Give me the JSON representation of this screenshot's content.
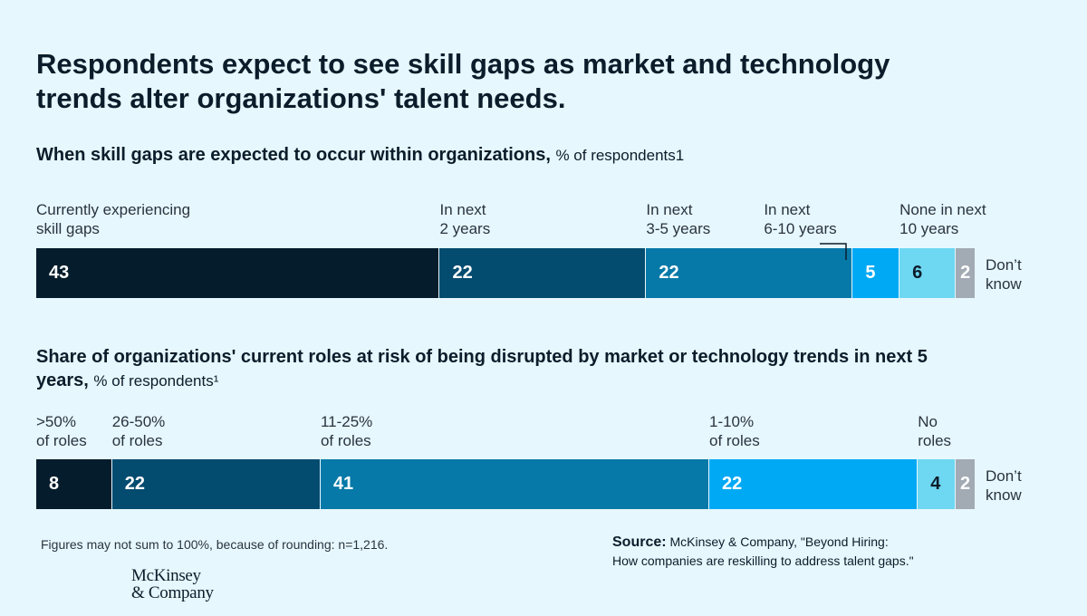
{
  "title": "Respondents expect to see skill gaps as market and technology trends alter organizations' talent needs.",
  "chart_data": [
    {
      "type": "bar",
      "orientation": "horizontal-stacked",
      "title": "When skill gaps are expected to occur within organizations,",
      "unit": "% of respondents1",
      "categories": [
        "Currently experiencing\nskill gaps",
        "In next\n2 years",
        "In next\n3-5 years",
        "In next\n6-10 years",
        "None in next\n10 years",
        "Don’t\nknow"
      ],
      "values": [
        43,
        22,
        22,
        5,
        6,
        2
      ],
      "colors": [
        "#051c2c",
        "#034b6f",
        "#0679a8",
        "#00a9f4",
        "#6ed7f2",
        "#a2aab3"
      ],
      "value_text_colors": [
        "#ffffff",
        "#ffffff",
        "#ffffff",
        "#ffffff",
        "#0b1d2a",
        "#ffffff"
      ],
      "widths_scale_sum": 100
    },
    {
      "type": "bar",
      "orientation": "horizontal-stacked",
      "title": "Share of organizations' current roles at risk of being disrupted by market or technology trends in next 5 years,",
      "unit": "% of respondents¹",
      "categories": [
        ">50%\nof roles",
        "26-50%\nof roles",
        "11-25%\nof roles",
        "1-10%\nof roles",
        "No\nroles",
        "Don’t\nknow"
      ],
      "values": [
        8,
        22,
        41,
        22,
        4,
        2
      ],
      "colors": [
        "#051c2c",
        "#034b6f",
        "#0679a8",
        "#00a9f4",
        "#6ed7f2",
        "#a2aab3"
      ],
      "value_text_colors": [
        "#ffffff",
        "#ffffff",
        "#ffffff",
        "#ffffff",
        "#0b1d2a",
        "#ffffff"
      ],
      "widths_scale_sum": 100
    }
  ],
  "footnote": "Figures may not sum to 100%, because of rounding: n=1,216.",
  "source": {
    "label": "Source:",
    "text": "McKinsey & Company, \"Beyond Hiring:\nHow companies are reskilling to address talent gaps.\""
  },
  "logo": "McKinsey\n& Company"
}
